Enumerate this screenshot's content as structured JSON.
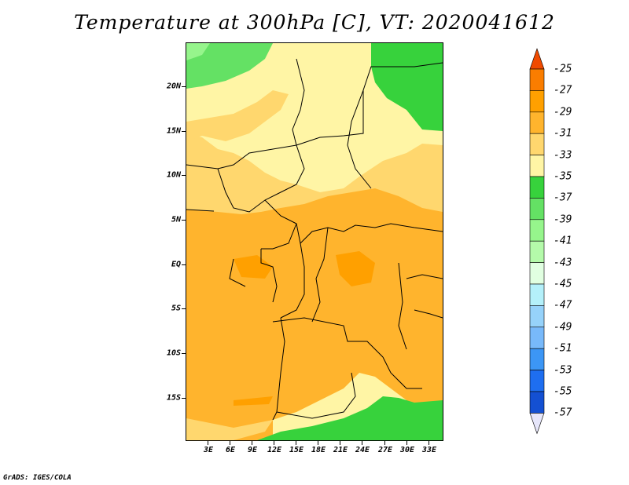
{
  "title": "Temperature at 300hPa [C], VT: 2020041612",
  "footer": "GrADS: IGES/COLA",
  "map": {
    "lat_labels": [
      "20N",
      "15N",
      "10N",
      "5N",
      "EQ",
      "5S",
      "10S",
      "15S"
    ],
    "lat_values": [
      20,
      15,
      10,
      5,
      0,
      -5,
      -10,
      -15
    ],
    "lon_labels": [
      "3E",
      "6E",
      "9E",
      "12E",
      "15E",
      "18E",
      "21E",
      "24E",
      "27E",
      "30E",
      "33E"
    ],
    "lon_values": [
      3,
      6,
      9,
      12,
      15,
      18,
      21,
      24,
      27,
      30,
      33
    ],
    "lon_range": [
      0,
      35
    ],
    "lat_range": [
      -20,
      25
    ]
  },
  "colorbar": {
    "labels": [
      "-25",
      "-27",
      "-29",
      "-31",
      "-33",
      "-35",
      "-37",
      "-39",
      "-41",
      "-43",
      "-45",
      "-47",
      "-49",
      "-51",
      "-53",
      "-55",
      "-57"
    ],
    "colors": [
      "#f04a00",
      "#fa7d00",
      "#ffa000",
      "#ffb42d",
      "#ffd76e",
      "#fff5a5",
      "#37d23c",
      "#64e164",
      "#96f58c",
      "#b4faaa",
      "#e1ffe1",
      "#b4f0fa",
      "#96d2fa",
      "#78b9fa",
      "#3c96f5",
      "#1e6ef0",
      "#1450d2",
      "#0a2896"
    ]
  },
  "colors": {
    "orange_warm": "#ffb42d",
    "orange_mid": "#ffd76e",
    "yellow_pale": "#fff5a5",
    "green_dark": "#37d23c",
    "green_mid": "#64e164",
    "green_light": "#96f58c"
  }
}
